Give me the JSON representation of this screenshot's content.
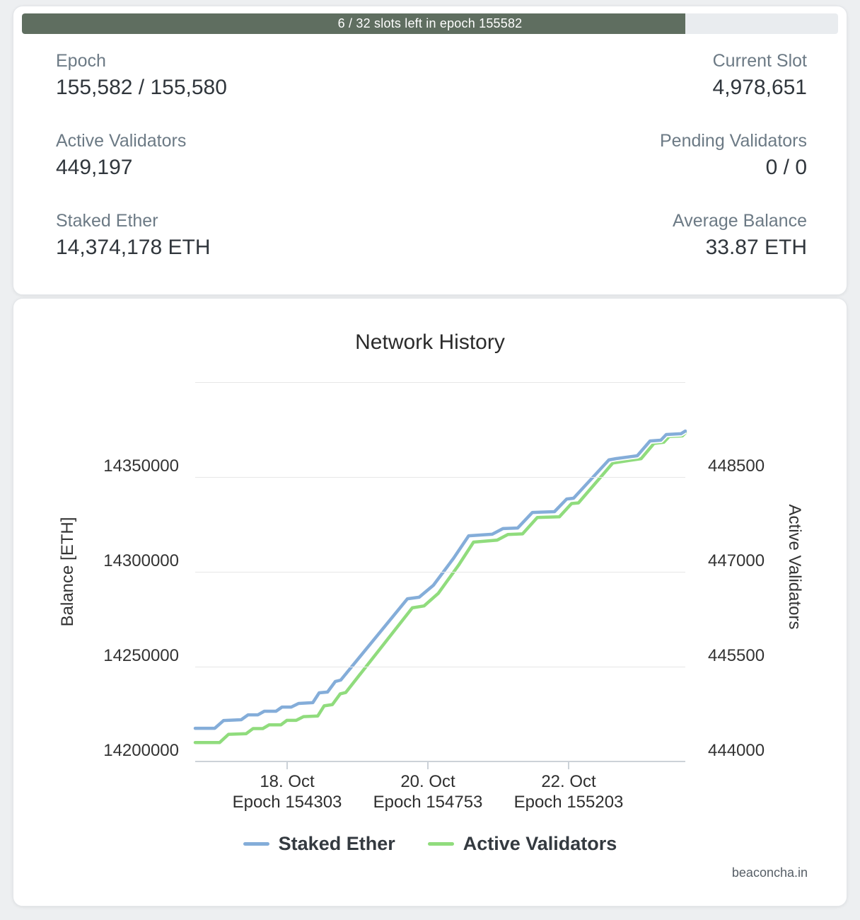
{
  "progress": {
    "label": "6 / 32 slots left in epoch 155582",
    "fraction": 0.8125,
    "fill_color": "#5f6e60",
    "track_color": "#e9ecef"
  },
  "stats": [
    {
      "label": "Epoch",
      "value": "155,582 / 155,580"
    },
    {
      "label": "Current Slot",
      "value": "4,978,651"
    },
    {
      "label": "Active Validators",
      "value": "449,197"
    },
    {
      "label": "Pending Validators",
      "value": "0 / 0"
    },
    {
      "label": "Staked Ether",
      "value": "14,374,178 ETH"
    },
    {
      "label": "Average Balance",
      "value": "33.87 ETH"
    }
  ],
  "chart_data": {
    "type": "line",
    "title": "Network History",
    "grid": true,
    "legend_position": "bottom",
    "watermark": "beaconcha.in",
    "y_left": {
      "title": "Balance [ETH]",
      "min": 14200000,
      "max": 14400000,
      "tick_labels": [
        "14350000",
        "14300000",
        "14250000",
        "14200000"
      ],
      "tick_values": [
        14350000,
        14300000,
        14250000,
        14200000
      ],
      "grid_values": [
        14400000,
        14350000,
        14300000,
        14250000
      ]
    },
    "y_right": {
      "title": "Active Validators",
      "min": 444000,
      "max": 450000,
      "tick_labels": [
        "448500",
        "447000",
        "445500",
        "444000"
      ],
      "tick_values": [
        448500,
        447000,
        445500,
        444000
      ]
    },
    "x_axis": {
      "ticks": [
        {
          "pos": 0.188,
          "date": "18. Oct",
          "epoch": "Epoch 154303"
        },
        {
          "pos": 0.475,
          "date": "20. Oct",
          "epoch": "Epoch 154753"
        },
        {
          "pos": 0.762,
          "date": "22. Oct",
          "epoch": "Epoch 155203"
        }
      ]
    },
    "series": [
      {
        "name": "Staked Ether",
        "axis": "left",
        "color": "#84add9",
        "points": [
          [
            0.0,
            14217500
          ],
          [
            0.04,
            14217500
          ],
          [
            0.058,
            14221600
          ],
          [
            0.094,
            14222000
          ],
          [
            0.108,
            14224600
          ],
          [
            0.128,
            14224600
          ],
          [
            0.141,
            14226500
          ],
          [
            0.165,
            14226500
          ],
          [
            0.177,
            14228700
          ],
          [
            0.196,
            14228700
          ],
          [
            0.211,
            14230600
          ],
          [
            0.24,
            14231000
          ],
          [
            0.253,
            14236200
          ],
          [
            0.27,
            14236600
          ],
          [
            0.286,
            14242200
          ],
          [
            0.297,
            14242900
          ],
          [
            0.433,
            14285800
          ],
          [
            0.457,
            14286600
          ],
          [
            0.486,
            14292900
          ],
          [
            0.527,
            14307100
          ],
          [
            0.558,
            14319000
          ],
          [
            0.606,
            14319800
          ],
          [
            0.628,
            14322800
          ],
          [
            0.658,
            14323100
          ],
          [
            0.688,
            14331300
          ],
          [
            0.733,
            14331700
          ],
          [
            0.758,
            14338400
          ],
          [
            0.772,
            14338800
          ],
          [
            0.844,
            14359000
          ],
          [
            0.859,
            14359700
          ],
          [
            0.902,
            14361200
          ],
          [
            0.928,
            14369000
          ],
          [
            0.95,
            14369400
          ],
          [
            0.961,
            14372400
          ],
          [
            0.991,
            14372800
          ],
          [
            1.0,
            14374200
          ]
        ]
      },
      {
        "name": "Active Validators",
        "axis": "right",
        "color": "#90dc7d",
        "points": [
          [
            0.0,
            444300
          ],
          [
            0.05,
            444300
          ],
          [
            0.068,
            444430
          ],
          [
            0.104,
            444440
          ],
          [
            0.118,
            444520
          ],
          [
            0.138,
            444520
          ],
          [
            0.151,
            444580
          ],
          [
            0.175,
            444580
          ],
          [
            0.187,
            444650
          ],
          [
            0.206,
            444650
          ],
          [
            0.221,
            444710
          ],
          [
            0.25,
            444720
          ],
          [
            0.263,
            444880
          ],
          [
            0.28,
            444900
          ],
          [
            0.296,
            445070
          ],
          [
            0.307,
            445090
          ],
          [
            0.443,
            446430
          ],
          [
            0.467,
            446460
          ],
          [
            0.496,
            446660
          ],
          [
            0.537,
            447100
          ],
          [
            0.568,
            447470
          ],
          [
            0.616,
            447500
          ],
          [
            0.638,
            447590
          ],
          [
            0.668,
            447600
          ],
          [
            0.698,
            447860
          ],
          [
            0.743,
            447870
          ],
          [
            0.768,
            448080
          ],
          [
            0.782,
            448090
          ],
          [
            0.852,
            448720
          ],
          [
            0.867,
            448740
          ],
          [
            0.91,
            448790
          ],
          [
            0.936,
            449030
          ],
          [
            0.956,
            449050
          ],
          [
            0.967,
            449140
          ],
          [
            0.994,
            449150
          ],
          [
            1.0,
            449197
          ]
        ]
      }
    ]
  }
}
